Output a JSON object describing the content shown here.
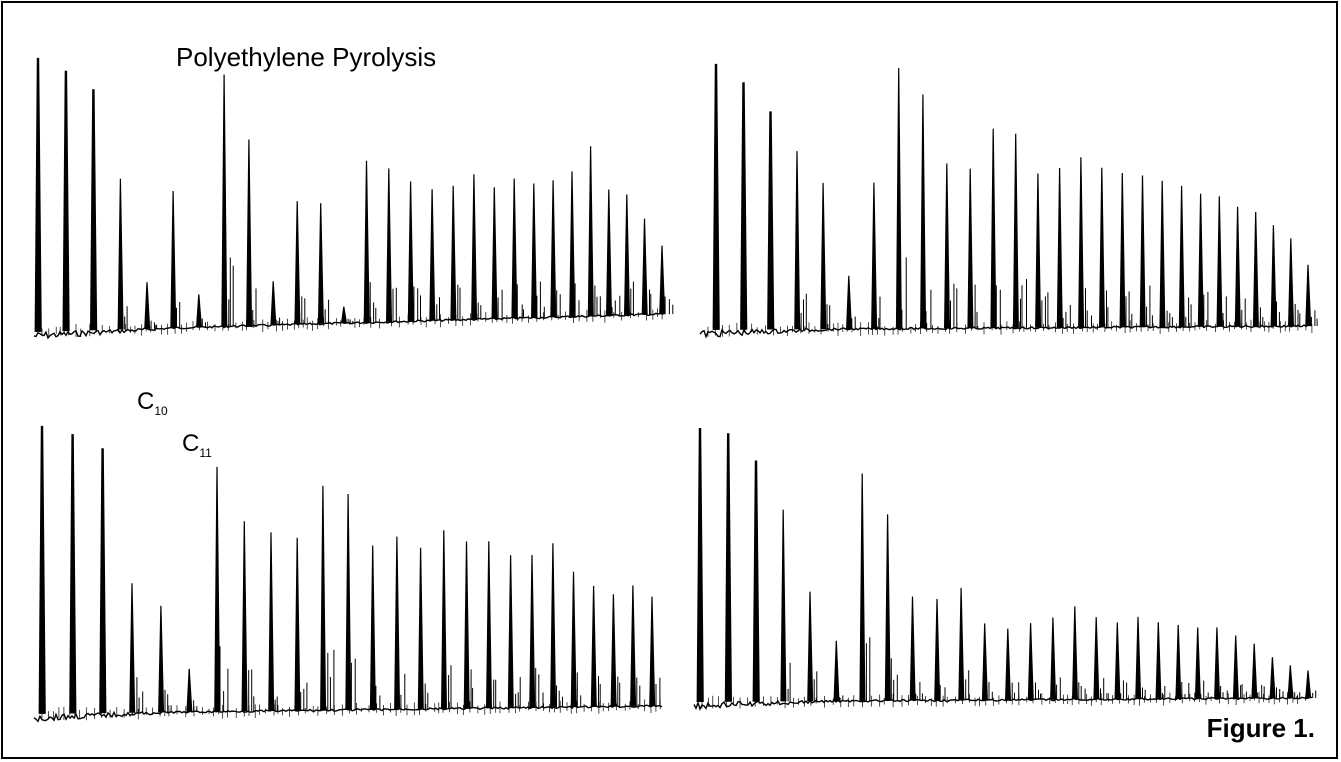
{
  "figure": {
    "title": "Polyethylene Pyrolysis",
    "caption": "Figure 1."
  },
  "colors": {
    "trace": "#000000",
    "background": "#ffffff",
    "frame": "#000000"
  },
  "chart_data": [
    {
      "type": "line",
      "panel": "top-left",
      "title": "Polyethylene Pyrolysis",
      "axes_visible": false,
      "grid": false,
      "peaks_relative_height": [
        1.0,
        0.95,
        0.88,
        0.55,
        0.17,
        0.5,
        0.12,
        0.92,
        0.68,
        0.16,
        0.45,
        0.44,
        0.06,
        0.59,
        0.56,
        0.51,
        0.48,
        0.49,
        0.53,
        0.48,
        0.51,
        0.49,
        0.5,
        0.53,
        0.62,
        0.46,
        0.44,
        0.35,
        0.25
      ]
    },
    {
      "type": "line",
      "panel": "top-right",
      "axes_visible": false,
      "grid": false,
      "peaks_relative_height": [
        1.0,
        0.93,
        0.82,
        0.67,
        0.55,
        0.2,
        0.55,
        0.98,
        0.88,
        0.62,
        0.6,
        0.75,
        0.73,
        0.58,
        0.6,
        0.64,
        0.6,
        0.58,
        0.57,
        0.55,
        0.53,
        0.5,
        0.49,
        0.45,
        0.43,
        0.38,
        0.33,
        0.23
      ]
    },
    {
      "type": "line",
      "panel": "bottom-left",
      "annotations": [
        {
          "base": "C",
          "subscript": "10"
        },
        {
          "base": "C",
          "subscript": "11"
        }
      ],
      "axes_visible": false,
      "grid": false,
      "peaks_relative_height": [
        1.0,
        0.97,
        0.92,
        0.45,
        0.37,
        0.15,
        0.85,
        0.66,
        0.62,
        0.6,
        0.78,
        0.75,
        0.57,
        0.6,
        0.56,
        0.62,
        0.58,
        0.58,
        0.53,
        0.53,
        0.57,
        0.47,
        0.42,
        0.39,
        0.42,
        0.38
      ],
      "labeled_peaks": [
        "C10",
        "C11"
      ]
    },
    {
      "type": "line",
      "panel": "bottom-right",
      "axes_visible": false,
      "grid": false,
      "peaks_relative_height": [
        1.0,
        0.98,
        0.88,
        0.7,
        0.4,
        0.22,
        0.83,
        0.68,
        0.38,
        0.37,
        0.41,
        0.28,
        0.26,
        0.28,
        0.3,
        0.34,
        0.3,
        0.28,
        0.3,
        0.28,
        0.27,
        0.26,
        0.26,
        0.23,
        0.2,
        0.15,
        0.12,
        0.1
      ]
    }
  ]
}
